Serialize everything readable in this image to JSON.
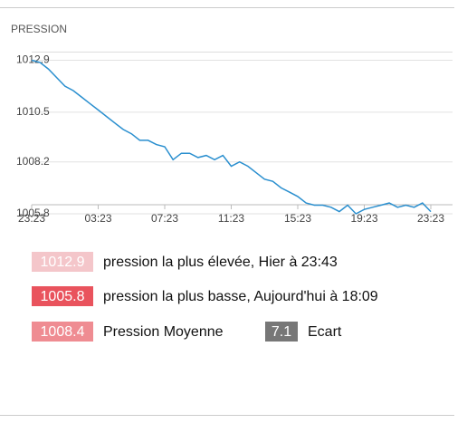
{
  "chart_data": {
    "type": "line",
    "title": "PRESSION",
    "x": [
      0,
      0.5,
      1,
      1.5,
      2,
      2.5,
      3,
      3.5,
      4,
      4.5,
      5,
      5.5,
      6,
      6.5,
      7,
      7.5,
      8,
      8.5,
      9,
      9.5,
      10,
      10.5,
      11,
      11.5,
      12,
      12.5,
      13,
      13.5,
      14,
      14.5,
      15,
      15.5,
      16,
      16.5,
      17,
      17.5,
      18,
      18.5,
      19,
      19.5,
      20,
      20.5,
      21,
      21.5,
      22,
      22.5,
      23,
      23.5,
      24
    ],
    "series": [
      {
        "name": "PRESSION",
        "color": "#2a8fcf",
        "values": [
          1012.9,
          1012.8,
          1012.5,
          1012.1,
          1011.7,
          1011.5,
          1011.2,
          1010.9,
          1010.6,
          1010.3,
          1010.0,
          1009.7,
          1009.5,
          1009.2,
          1009.2,
          1009.0,
          1008.9,
          1008.3,
          1008.6,
          1008.6,
          1008.4,
          1008.5,
          1008.3,
          1008.5,
          1008.0,
          1008.2,
          1008.0,
          1007.7,
          1007.4,
          1007.3,
          1007.0,
          1006.8,
          1006.6,
          1006.3,
          1006.2,
          1006.2,
          1006.1,
          1005.9,
          1006.2,
          1005.8,
          1006.0,
          1006.1,
          1006.2,
          1006.3,
          1006.1,
          1006.2,
          1006.1,
          1006.3,
          1005.9
        ]
      }
    ],
    "xlim": [
      0,
      24
    ],
    "xticks": [
      {
        "value": 0,
        "label": "23:23"
      },
      {
        "value": 4,
        "label": "03:23"
      },
      {
        "value": 8,
        "label": "07:23"
      },
      {
        "value": 12,
        "label": "11:23"
      },
      {
        "value": 16,
        "label": "15:23"
      },
      {
        "value": 20,
        "label": "19:23"
      },
      {
        "value": 24,
        "label": "23:23"
      }
    ],
    "ylim": [
      1005.8,
      1013.3
    ],
    "yticks": [
      1005.8,
      1008.2,
      1010.5,
      1012.9
    ],
    "grid": true
  },
  "stats": [
    {
      "value": "1012.9",
      "text": "pression la plus élevée, Hier à 23:43",
      "color": "#f4c6ca"
    },
    {
      "value": "1005.8",
      "text": "pression la plus basse, Aujourd'hui à 18:09",
      "color": "#e9535d"
    },
    {
      "value": "1008.4",
      "text": "Pression Moyenne",
      "color": "#ef8c92"
    },
    {
      "value": "7.1",
      "text": "Ecart",
      "color": "#777777"
    }
  ]
}
